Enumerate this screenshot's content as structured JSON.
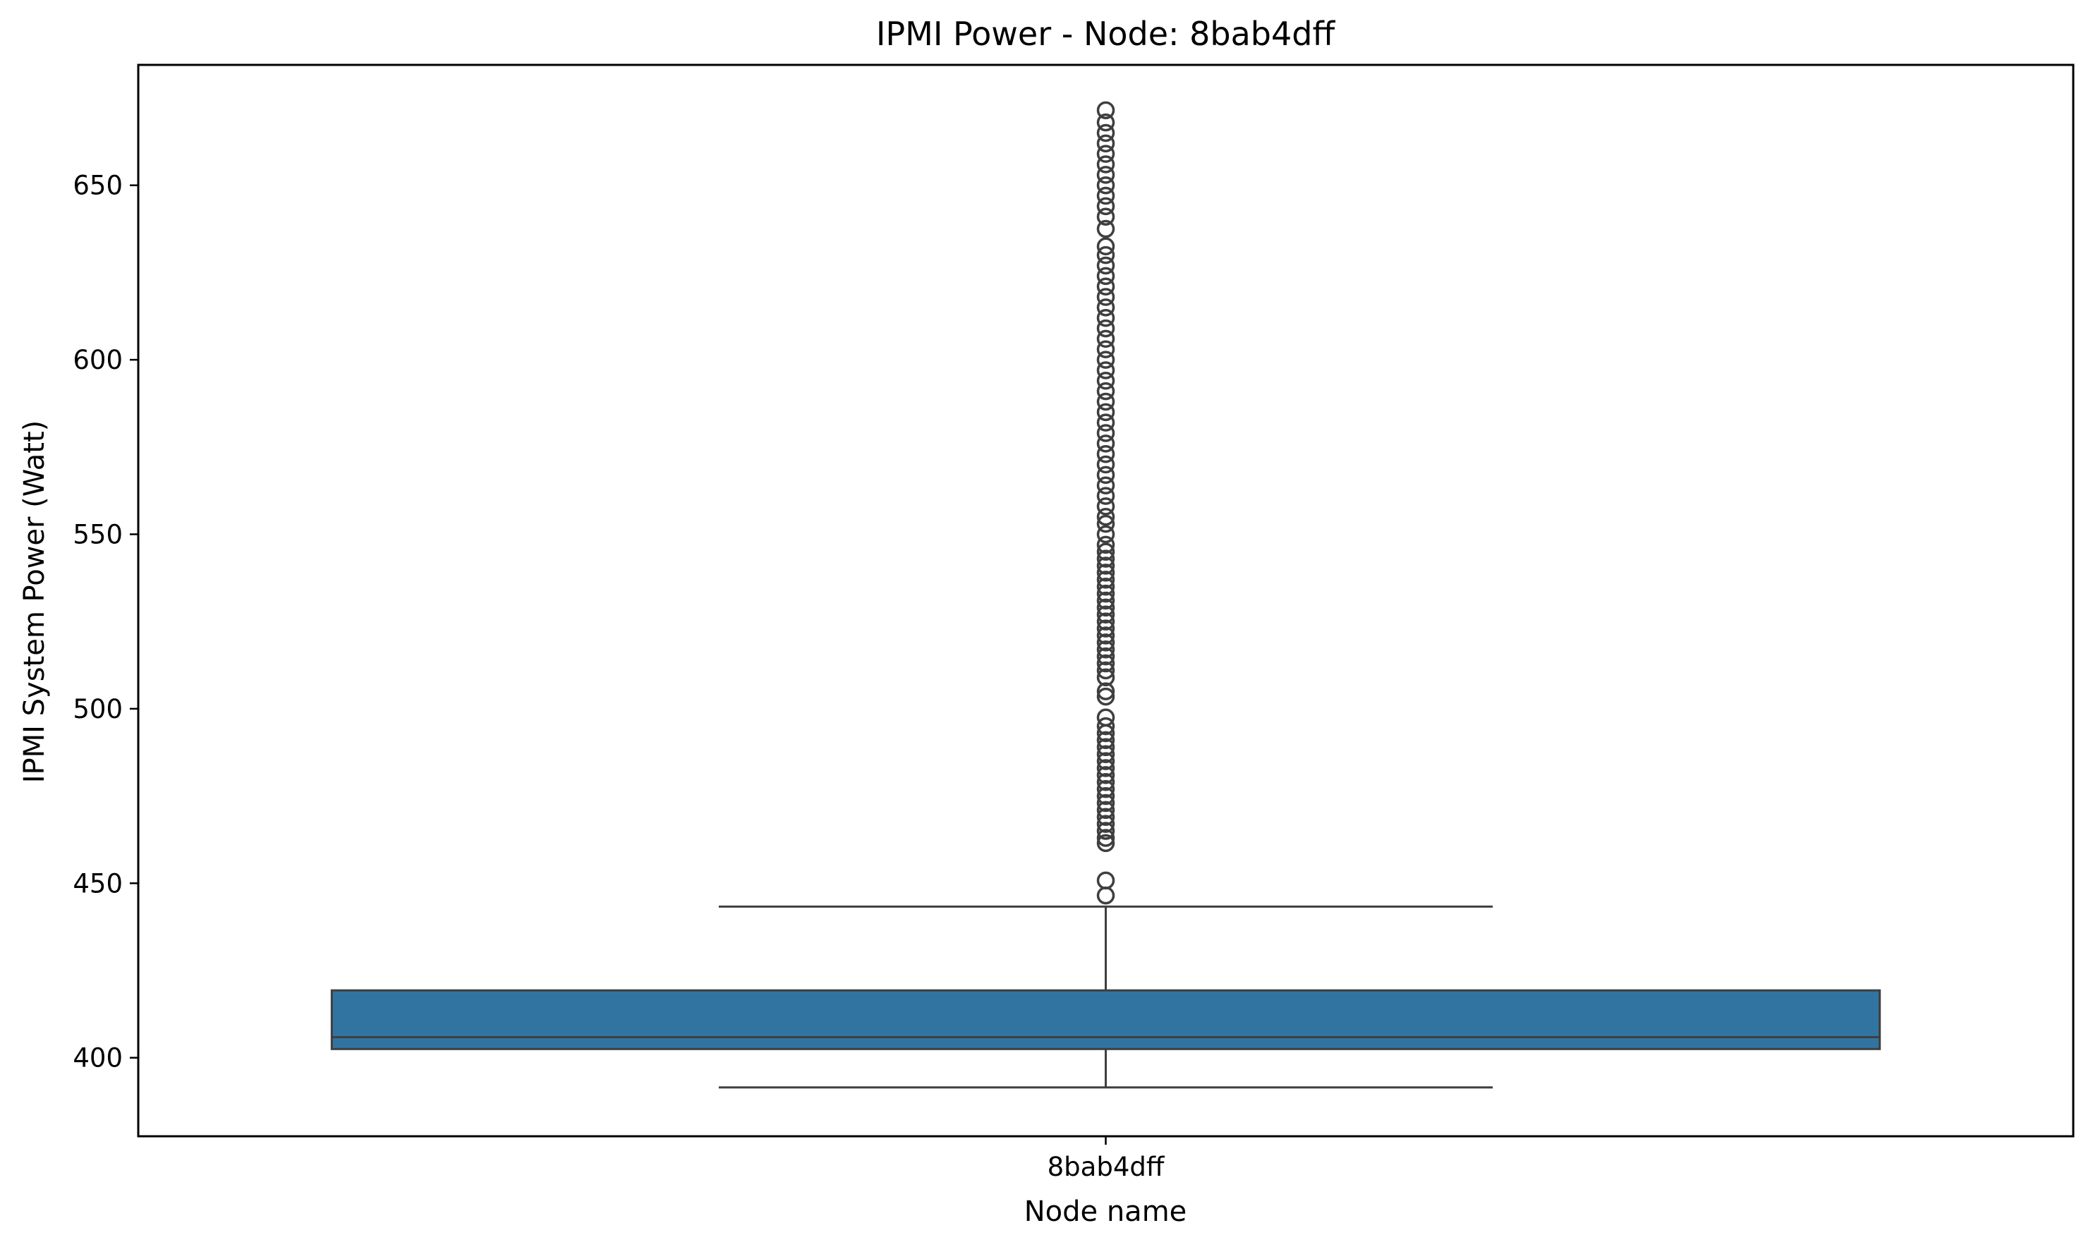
{
  "chart_data": {
    "type": "box",
    "title": "IPMI Power - Node: 8bab4dff",
    "xlabel": "Node name",
    "ylabel": "IPMI System Power (Watt)",
    "categories": [
      "8bab4dff"
    ],
    "ylim": [
      377.5,
      684.5
    ],
    "yticks": [
      400,
      450,
      500,
      550,
      600,
      650
    ],
    "ytick_labels": [
      "400",
      "450",
      "500",
      "550",
      "600",
      "650"
    ],
    "grid": false,
    "legend": "none",
    "box_color": "#3274a1",
    "line_color": "#3f3f3f",
    "boxes": [
      {
        "category": "8bab4dff",
        "whisker_low": 391.5,
        "q1": 402.5,
        "median": 405.9,
        "q3": 419.3,
        "whisker_high": 443.3,
        "outliers": [
          446.5,
          450.8,
          461.5,
          463,
          465,
          467,
          469,
          471,
          473,
          475,
          477,
          479,
          481,
          483,
          485,
          487,
          489,
          491,
          493,
          495,
          497.5,
          503.5,
          505,
          509,
          511,
          513,
          515,
          517,
          519,
          521,
          523,
          525,
          527,
          529,
          531,
          533,
          535,
          537,
          539,
          541,
          543,
          545,
          547,
          550,
          553,
          555,
          558,
          561,
          564,
          567,
          570,
          573,
          576,
          579,
          582,
          585,
          588,
          591,
          594,
          597,
          600,
          603,
          606,
          609,
          612,
          615,
          618,
          621,
          624,
          627,
          630,
          632.5,
          637.5,
          641,
          644,
          647,
          650,
          653,
          656,
          659,
          662,
          665,
          668,
          671.5
        ]
      }
    ]
  }
}
